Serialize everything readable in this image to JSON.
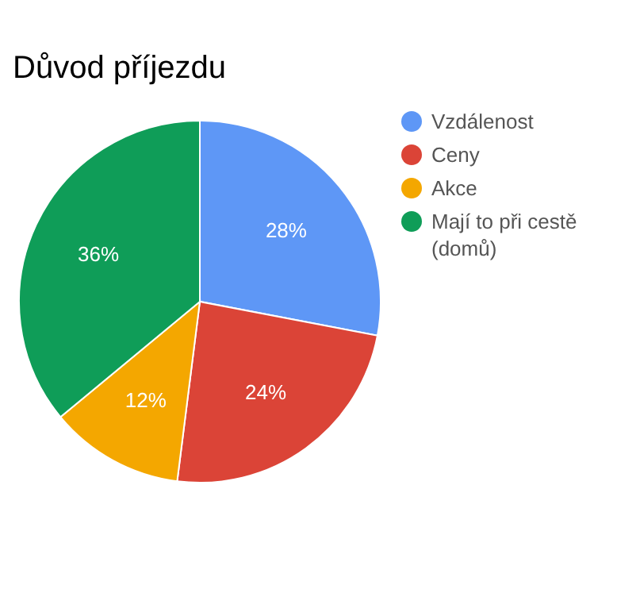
{
  "chart_data": {
    "type": "pie",
    "title": "Důvod příjezdu",
    "categories": [
      "Vzdálenost",
      "Ceny",
      "Akce",
      "Mají to při cestě (domů)"
    ],
    "values": [
      28,
      24,
      12,
      36
    ],
    "colors": [
      "#5e97f6",
      "#db4437",
      "#f4a700",
      "#0f9d58"
    ],
    "value_labels": [
      "28%",
      "24%",
      "12%",
      "36%"
    ],
    "legend": "right"
  }
}
